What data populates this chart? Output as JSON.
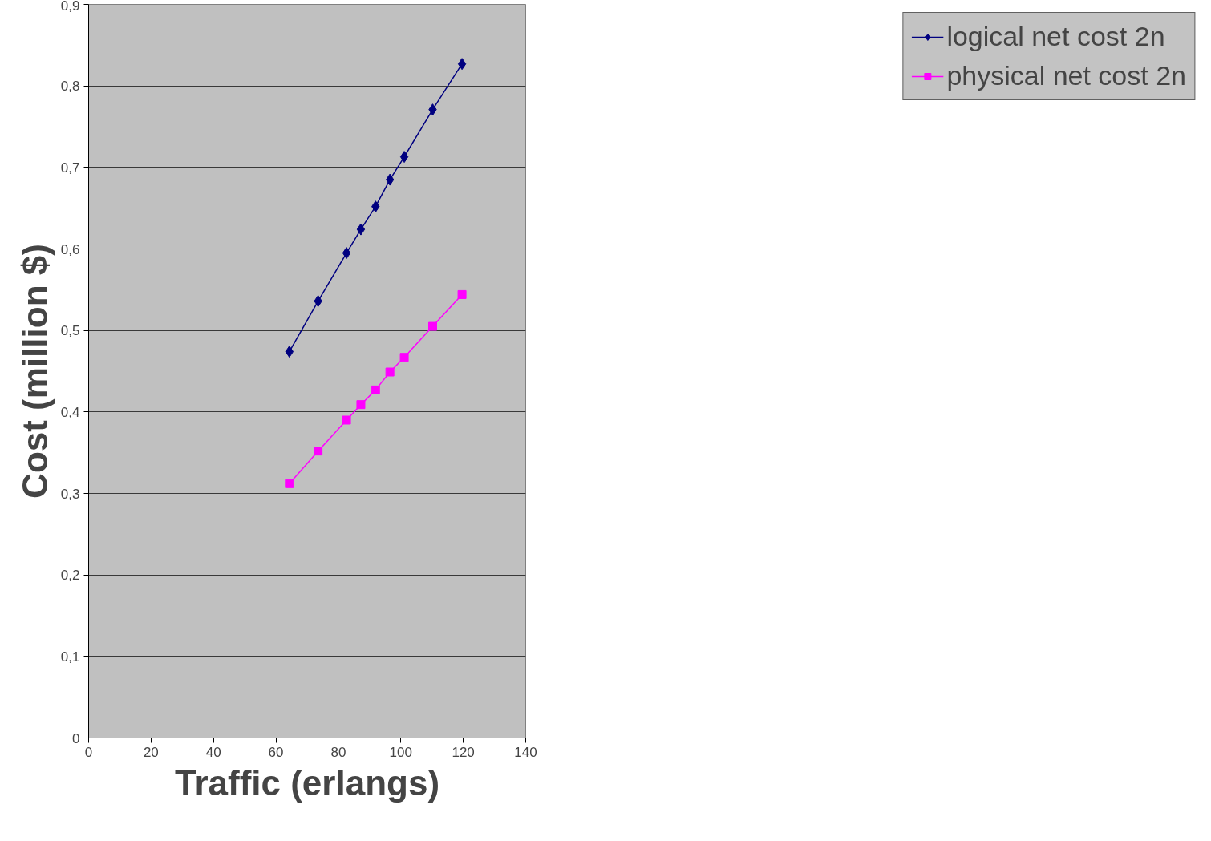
{
  "chart_data": {
    "type": "line",
    "xlabel": "Traffic (erlangs)",
    "ylabel": "Cost (million $)",
    "xlim": [
      0,
      140
    ],
    "xticks": [
      0,
      20,
      40,
      60,
      80,
      100,
      120,
      140
    ],
    "ylim": [
      0,
      0.9
    ],
    "yticks": [
      {
        "value": 0,
        "label": "0"
      },
      {
        "value": 0.1,
        "label": "0,1"
      },
      {
        "value": 0.2,
        "label": "0,2"
      },
      {
        "value": 0.3,
        "label": "0,3"
      },
      {
        "value": 0.4,
        "label": "0,4"
      },
      {
        "value": 0.5,
        "label": "0,5"
      },
      {
        "value": 0.6,
        "label": "0,6"
      },
      {
        "value": 0.7,
        "label": "0,7"
      },
      {
        "value": 0.8,
        "label": "0,8"
      },
      {
        "value": 0.9,
        "label": "0,9"
      }
    ],
    "x": [
      64.3,
      73.5,
      82.6,
      87.2,
      91.9,
      96.5,
      101.1,
      110.2,
      119.6
    ],
    "series": [
      {
        "name": "logical net cost 2n",
        "color": "#000080",
        "marker": "diamond",
        "values": [
          0.474,
          0.536,
          0.595,
          0.624,
          0.652,
          0.685,
          0.713,
          0.771,
          0.827
        ]
      },
      {
        "name": "physical net cost 2n",
        "color": "#ff00ff",
        "marker": "square",
        "values": [
          0.312,
          0.352,
          0.39,
          0.409,
          0.427,
          0.449,
          0.467,
          0.505,
          0.544
        ]
      }
    ],
    "grid": "y",
    "legend": "right",
    "line_style": "solid"
  }
}
